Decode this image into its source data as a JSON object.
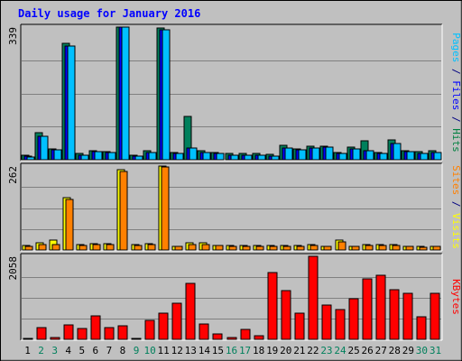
{
  "chart_data": {
    "type": "bar",
    "title": "Daily usage for January 2016",
    "days": [
      "1",
      "2",
      "3",
      "4",
      "5",
      "6",
      "7",
      "8",
      "9",
      "10",
      "11",
      "12",
      "13",
      "14",
      "15",
      "16",
      "17",
      "18",
      "19",
      "20",
      "21",
      "22",
      "23",
      "24",
      "25",
      "26",
      "27",
      "28",
      "29",
      "30",
      "31"
    ],
    "weekend_days": [
      "2",
      "3",
      "9",
      "10",
      "16",
      "17",
      "23",
      "24",
      "30",
      "31"
    ],
    "panels": [
      {
        "id": "top",
        "max_label": "339",
        "ymax": 339,
        "legend": [
          {
            "text": "Pages",
            "color": "#00c0ff"
          },
          {
            "text": " / ",
            "color": "#000080"
          },
          {
            "text": "Files",
            "color": "#0000ff"
          },
          {
            "text": " / ",
            "color": "#000080"
          },
          {
            "text": "Hits",
            "color": "#008040"
          }
        ],
        "series": [
          {
            "name": "Hits",
            "color": "#00805c",
            "values": [
              12,
              70,
              28,
              298,
              15,
              24,
              20,
              339,
              12,
              22,
              337,
              18,
              110,
              22,
              18,
              15,
              16,
              15,
              14,
              38,
              28,
              35,
              35,
              18,
              32,
              48,
              18,
              50,
              24,
              20,
              22
            ]
          },
          {
            "name": "Files",
            "color": "#0000ff",
            "values": [
              10,
              60,
              25,
              290,
              12,
              20,
              18,
              339,
              10,
              18,
              332,
              15,
              30,
              18,
              15,
              12,
              12,
              12,
              10,
              30,
              25,
              30,
              32,
              15,
              28,
              22,
              15,
              42,
              20,
              15,
              18
            ]
          },
          {
            "name": "Pages",
            "color": "#00c0ff",
            "values": [
              8,
              60,
              25,
              290,
              12,
              20,
              18,
              339,
              10,
              18,
              332,
              15,
              30,
              18,
              15,
              12,
              12,
              12,
              10,
              30,
              25,
              30,
              32,
              15,
              28,
              22,
              15,
              42,
              20,
              15,
              18
            ]
          }
        ]
      },
      {
        "id": "mid",
        "max_label": "262",
        "ymax": 262,
        "legend": [
          {
            "text": "Sites",
            "color": "#ff8000"
          },
          {
            "text": " / ",
            "color": "#000080"
          },
          {
            "text": "Visits",
            "color": "#ffff00"
          }
        ],
        "series": [
          {
            "name": "Visits",
            "color": "#ffff00",
            "values": [
              14,
              22,
              32,
              162,
              18,
              20,
              20,
              250,
              16,
              20,
              262,
              12,
              22,
              22,
              15,
              14,
              14,
              14,
              14,
              14,
              14,
              16,
              12,
              30,
              12,
              18,
              18,
              16,
              12,
              10,
              12
            ]
          },
          {
            "name": "Sites",
            "color": "#ff8000",
            "values": [
              12,
              18,
              18,
              158,
              14,
              18,
              18,
              246,
              14,
              18,
              260,
              10,
              18,
              18,
              14,
              12,
              12,
              12,
              12,
              12,
              12,
              14,
              10,
              26,
              10,
              14,
              14,
              14,
              10,
              8,
              10
            ]
          }
        ]
      },
      {
        "id": "bot",
        "max_label": "2058",
        "ymax": 2058,
        "legend": [
          {
            "text": "KBytes",
            "color": "#ff0000"
          }
        ],
        "series": [
          {
            "name": "KBytes",
            "color": "#ff0000",
            "values": [
              30,
              280,
              50,
              350,
              260,
              580,
              300,
              330,
              20,
              480,
              650,
              900,
              1380,
              380,
              130,
              50,
              240,
              80,
              1650,
              1200,
              650,
              2058,
              850,
              740,
              1000,
              1500,
              1580,
              1240,
              1140,
              570,
              1130
            ]
          }
        ]
      }
    ]
  }
}
